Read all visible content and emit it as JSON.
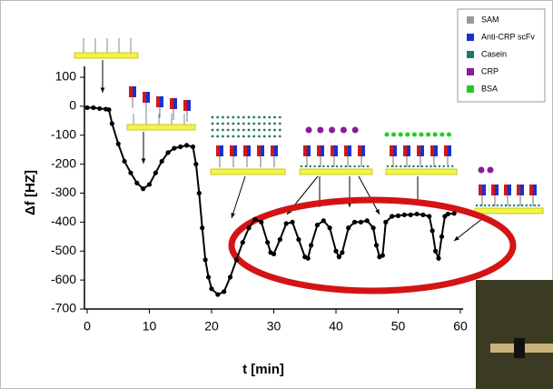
{
  "chart_data": {
    "type": "line",
    "x_label": "t [min]",
    "y_label": "Δf [HZ]",
    "color": "#000000",
    "xlim": [
      0,
      60
    ],
    "xticks": [
      0,
      10,
      20,
      30,
      40,
      50,
      60
    ],
    "ylim": [
      -700,
      100
    ],
    "yticks": [
      100,
      0,
      -100,
      -200,
      -300,
      -400,
      -500,
      -600,
      -700
    ],
    "x": [
      0,
      1,
      2,
      3,
      3.5,
      4,
      5,
      6,
      7,
      8,
      9,
      10,
      11,
      12,
      13,
      14,
      15,
      16,
      17,
      17.5,
      18,
      18.5,
      19,
      19.5,
      20,
      21,
      22,
      23,
      24,
      25,
      26,
      27,
      28,
      29,
      29.5,
      30,
      31,
      32,
      33,
      34,
      35,
      35.5,
      36,
      37,
      38,
      39,
      40,
      40.5,
      41,
      42,
      43,
      44,
      45,
      46,
      46.5,
      47,
      47.5,
      48,
      49,
      50,
      51,
      52,
      53,
      54,
      55,
      55.5,
      56,
      56.5,
      57,
      57.5,
      58,
      59
    ],
    "values": [
      -5,
      -5,
      -8,
      -10,
      -12,
      -60,
      -130,
      -190,
      -230,
      -265,
      -285,
      -270,
      -230,
      -190,
      -160,
      -145,
      -140,
      -135,
      -140,
      -200,
      -300,
      -420,
      -530,
      -590,
      -630,
      -650,
      -640,
      -590,
      -530,
      -470,
      -420,
      -390,
      -400,
      -470,
      -505,
      -510,
      -460,
      -405,
      -400,
      -460,
      -520,
      -525,
      -480,
      -410,
      -395,
      -420,
      -500,
      -520,
      -505,
      -420,
      -400,
      -400,
      -395,
      -420,
      -480,
      -520,
      -515,
      -400,
      -380,
      -378,
      -375,
      -375,
      -372,
      -375,
      -380,
      -430,
      -500,
      -525,
      -450,
      -380,
      -372,
      -370
    ],
    "legend": [
      {
        "label": "SAM",
        "color": "#999999"
      },
      {
        "label": "Anti-CRP scFv",
        "color": "#1a2fd0"
      },
      {
        "label": "Casein",
        "color": "#1a7a6a"
      },
      {
        "label": "CRP",
        "color": "#8a1a9a"
      },
      {
        "label": "BSA",
        "color": "#22cc22"
      }
    ]
  }
}
